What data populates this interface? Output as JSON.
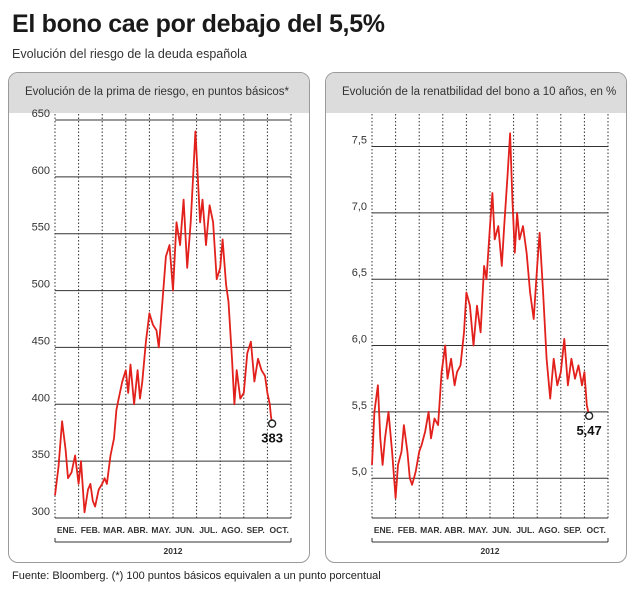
{
  "title": "El bono cae por debajo del 5,5%",
  "subtitle": "Evolución del riesgo de la deuda española",
  "source": "Fuente: Bloomberg. (*) 100 puntos básicos equivalen a un punto porcentual",
  "colors": {
    "line": "#e2201c",
    "panel_header": "#dcdcdc",
    "grid": "#333333"
  },
  "chart_data": [
    {
      "type": "line",
      "title": "Evolución de la prima de riesgo, en puntos básicos*",
      "year_label": "2012",
      "months": [
        "ENE.",
        "FEB.",
        "MAR.",
        "ABR.",
        "MAY.",
        "JUN.",
        "JUL.",
        "AGO.",
        "SEP.",
        "OCT."
      ],
      "ylim": [
        300,
        650
      ],
      "yticks": [
        300,
        350,
        400,
        450,
        500,
        550,
        600,
        650
      ],
      "ytick_labels": [
        "300",
        "350",
        "400",
        "450",
        "500",
        "550",
        "600",
        "650"
      ],
      "last_value_label": "383",
      "series": [
        {
          "x": [
            0.0,
            0.15,
            0.3,
            0.45,
            0.55,
            0.7,
            0.85,
            1.0,
            1.1,
            1.25,
            1.4,
            1.5,
            1.6,
            1.7,
            1.85,
            2.0,
            2.1,
            2.2,
            2.35,
            2.5,
            2.6,
            2.7,
            2.85,
            3.0,
            3.1,
            3.2,
            3.35,
            3.5,
            3.6,
            3.7,
            3.85,
            4.0,
            4.15,
            4.3,
            4.4,
            4.55,
            4.7,
            4.85,
            5.0,
            5.15,
            5.3,
            5.45,
            5.6,
            5.75,
            5.85,
            5.95,
            6.05,
            6.15,
            6.25,
            6.4,
            6.55,
            6.7,
            6.85,
            7.0,
            7.1,
            7.25,
            7.35,
            7.5,
            7.6,
            7.7,
            7.85,
            8.0,
            8.15,
            8.3,
            8.45,
            8.6,
            8.75,
            8.9,
            9.0,
            9.1,
            9.15,
            9.2
          ],
          "y": [
            320,
            345,
            385,
            360,
            335,
            340,
            355,
            330,
            350,
            305,
            325,
            330,
            315,
            310,
            325,
            330,
            335,
            330,
            355,
            370,
            395,
            405,
            420,
            430,
            410,
            435,
            400,
            430,
            405,
            420,
            455,
            480,
            470,
            465,
            450,
            490,
            530,
            540,
            500,
            560,
            540,
            580,
            520,
            560,
            600,
            640,
            600,
            560,
            580,
            540,
            575,
            560,
            510,
            520,
            545,
            505,
            490,
            440,
            400,
            430,
            405,
            410,
            445,
            455,
            420,
            440,
            430,
            425,
            410,
            400,
            390,
            383
          ]
        }
      ]
    },
    {
      "type": "line",
      "title": "Evolución de la renatbilidad del bono a 10 años, en %",
      "year_label": "2012",
      "months": [
        "ENE.",
        "FEB.",
        "MAR.",
        "ABR.",
        "MAY.",
        "JUN.",
        "JUL.",
        "AGO.",
        "SEP.",
        "OCT."
      ],
      "ylim": [
        4.7,
        7.7
      ],
      "yticks": [
        5.0,
        5.5,
        6.0,
        6.5,
        7.0,
        7.5
      ],
      "ytick_labels": [
        "5,0",
        "5,5",
        "6,0",
        "6,5",
        "7,0",
        "7,5"
      ],
      "last_value_label": "5,47",
      "series": [
        {
          "x": [
            0.0,
            0.1,
            0.25,
            0.35,
            0.45,
            0.55,
            0.7,
            0.85,
            1.0,
            1.1,
            1.25,
            1.35,
            1.5,
            1.6,
            1.7,
            1.85,
            2.0,
            2.1,
            2.25,
            2.4,
            2.5,
            2.65,
            2.8,
            2.95,
            3.1,
            3.2,
            3.35,
            3.5,
            3.6,
            3.75,
            3.9,
            4.0,
            4.15,
            4.3,
            4.45,
            4.6,
            4.75,
            4.85,
            5.0,
            5.1,
            5.2,
            5.35,
            5.5,
            5.6,
            5.75,
            5.85,
            5.95,
            6.05,
            6.15,
            6.25,
            6.4,
            6.55,
            6.7,
            6.85,
            7.0,
            7.1,
            7.25,
            7.4,
            7.55,
            7.7,
            7.85,
            8.0,
            8.15,
            8.3,
            8.45,
            8.6,
            8.75,
            8.9,
            9.0,
            9.1,
            9.2
          ],
          "y": [
            5.1,
            5.5,
            5.7,
            5.3,
            5.1,
            5.3,
            5.5,
            5.2,
            4.85,
            5.1,
            5.2,
            5.4,
            5.2,
            5.0,
            4.95,
            5.05,
            5.2,
            5.25,
            5.35,
            5.5,
            5.3,
            5.45,
            5.4,
            5.8,
            6.0,
            5.75,
            5.9,
            5.7,
            5.8,
            5.85,
            6.1,
            6.4,
            6.3,
            6.0,
            6.3,
            6.1,
            6.6,
            6.5,
            6.9,
            7.15,
            6.8,
            6.9,
            6.6,
            6.9,
            7.3,
            7.6,
            7.1,
            6.7,
            7.0,
            6.8,
            6.9,
            6.7,
            6.4,
            6.2,
            6.6,
            6.85,
            6.4,
            5.9,
            5.6,
            5.9,
            5.7,
            5.8,
            6.05,
            5.7,
            5.9,
            5.75,
            5.85,
            5.7,
            5.8,
            5.55,
            5.47
          ]
        }
      ]
    }
  ]
}
